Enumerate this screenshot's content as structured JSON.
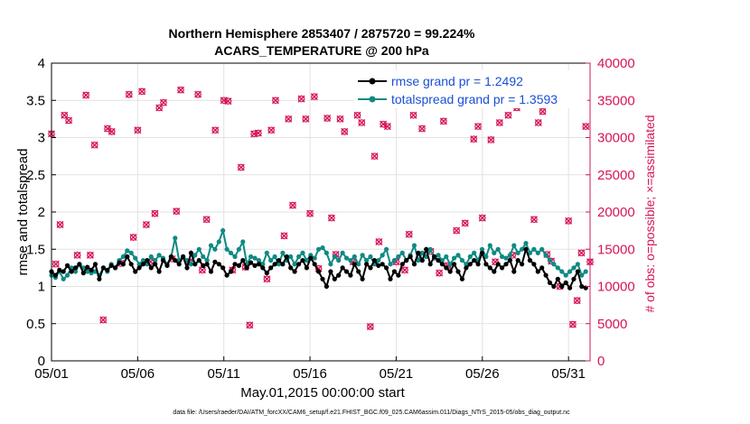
{
  "chart_data": {
    "type": "line",
    "title_line1": "Northern Hemisphere 2853407 / 2875720 = 99.224%",
    "title_line2": "ACARS_TEMPERATURE @ 200 hPa",
    "xlabel": "May.01,2015 00:00:00 start",
    "ylabel_left": "rmse and totalspread",
    "ylabel_right": "# of obs: o=possible; ×=assimilated",
    "footer": "data file: /Users/raeder/DAI/ATM_forcXX/CAM6_setup/f.e21.FHIST_BGC.f09_025.CAM6assim.011/Diags_NTrS_2015-05/obs_diag_output.nc",
    "xlim": [
      0,
      31.25
    ],
    "ylim_left": [
      0,
      4
    ],
    "ylim_right": [
      0,
      40000
    ],
    "x_ticks": [
      {
        "x": 0,
        "label": "05/01"
      },
      {
        "x": 5,
        "label": "05/06"
      },
      {
        "x": 10,
        "label": "05/11"
      },
      {
        "x": 15,
        "label": "05/16"
      },
      {
        "x": 20,
        "label": "05/21"
      },
      {
        "x": 25,
        "label": "05/26"
      },
      {
        "x": 30,
        "label": "05/31"
      }
    ],
    "y_ticks_left": [
      "0",
      "0.5",
      "1",
      "1.5",
      "2",
      "2.5",
      "3",
      "3.5",
      "4"
    ],
    "y_ticks_right": [
      "0",
      "5000",
      "10000",
      "15000",
      "20000",
      "25000",
      "30000",
      "35000",
      "40000"
    ],
    "colors": {
      "rmse": "#000000",
      "spread": "#0f8a84",
      "obs": "#d6155a",
      "legend_text": "#1a4fd6"
    },
    "series": [
      {
        "name": "rmse grand pr = 1.2492",
        "axis": "left",
        "values": [
          1.2,
          1.15,
          1.22,
          1.2,
          1.28,
          1.2,
          1.25,
          1.3,
          1.18,
          1.26,
          1.22,
          1.3,
          1.1,
          1.25,
          1.22,
          1.28,
          1.25,
          1.32,
          1.3,
          1.4,
          1.3,
          1.2,
          1.25,
          1.3,
          1.35,
          1.25,
          1.3,
          1.2,
          1.35,
          1.28,
          1.4,
          1.35,
          1.3,
          1.4,
          1.25,
          1.45,
          1.3,
          1.35,
          1.28,
          1.3,
          1.2,
          1.33,
          1.3,
          1.25,
          1.15,
          1.2,
          1.3,
          1.28,
          1.35,
          1.25,
          1.32,
          1.28,
          1.3,
          1.25,
          1.18,
          1.25,
          1.3,
          1.35,
          1.3,
          1.4,
          1.25,
          1.2,
          1.3,
          1.35,
          1.25,
          1.38,
          1.3,
          1.2,
          1.1,
          1.0,
          1.2,
          1.1,
          1.15,
          1.25,
          1.2,
          1.15,
          1.3,
          1.2,
          1.1,
          1.3,
          1.25,
          1.35,
          1.28,
          1.3,
          1.25,
          1.1,
          1.2,
          1.15,
          1.3,
          1.35,
          1.4,
          1.3,
          1.45,
          1.35,
          1.5,
          1.3,
          1.4,
          1.35,
          1.3,
          1.25,
          1.2,
          1.3,
          1.2,
          1.1,
          1.25,
          1.3,
          1.35,
          1.3,
          1.45,
          1.3,
          1.25,
          1.2,
          1.3,
          1.25,
          1.3,
          1.35,
          1.2,
          1.35,
          1.3,
          1.5,
          1.35,
          1.3,
          1.2,
          1.25,
          1.15,
          1.05,
          1.0,
          1.1,
          1.0,
          1.05,
          0.98,
          1.1,
          1.2,
          1.0,
          0.98
        ]
      },
      {
        "name": "totalspread grand pr = 1.3593",
        "axis": "left",
        "values": [
          1.15,
          1.12,
          1.2,
          1.1,
          1.15,
          1.25,
          1.2,
          1.3,
          1.25,
          1.2,
          1.18,
          1.2,
          1.15,
          1.25,
          1.2,
          1.3,
          1.25,
          1.35,
          1.4,
          1.48,
          1.45,
          1.38,
          1.3,
          1.35,
          1.3,
          1.4,
          1.35,
          1.42,
          1.38,
          1.3,
          1.4,
          1.65,
          1.35,
          1.4,
          1.35,
          1.3,
          1.42,
          1.5,
          1.4,
          1.35,
          1.55,
          1.5,
          1.6,
          1.75,
          1.5,
          1.45,
          1.4,
          1.5,
          1.6,
          1.3,
          1.4,
          1.38,
          1.35,
          1.3,
          1.45,
          1.35,
          1.4,
          1.3,
          1.45,
          1.35,
          1.4,
          1.3,
          1.4,
          1.45,
          1.35,
          1.42,
          1.38,
          1.5,
          1.52,
          1.45,
          1.3,
          1.4,
          1.35,
          1.45,
          1.38,
          1.35,
          1.4,
          1.3,
          1.42,
          1.35,
          1.4,
          1.3,
          1.35,
          1.42,
          1.5,
          1.3,
          1.35,
          1.4,
          1.45,
          1.35,
          1.42,
          1.55,
          1.35,
          1.45,
          1.4,
          1.5,
          1.38,
          1.42,
          1.35,
          1.4,
          1.3,
          1.38,
          1.42,
          1.35,
          1.3,
          1.4,
          1.45,
          1.35,
          1.5,
          1.4,
          1.55,
          1.45,
          1.5,
          1.4,
          1.38,
          1.42,
          1.55,
          1.45,
          1.5,
          1.58,
          1.45,
          1.5,
          1.45,
          1.5,
          1.42,
          1.35,
          1.3,
          1.25,
          1.2,
          1.15,
          1.2,
          1.25,
          1.3,
          1.15,
          1.2
        ]
      },
      {
        "name": "obs possible / assimilated",
        "axis": "right",
        "x": [
          0,
          0.25,
          0.5,
          0.75,
          1,
          1.5,
          2,
          2.25,
          2.5,
          3,
          3.25,
          3.5,
          4,
          4.5,
          4.75,
          5,
          5.25,
          5.5,
          5.75,
          6,
          6.25,
          6.5,
          7,
          7.25,
          7.5,
          8,
          8.5,
          8.75,
          9,
          9.5,
          10,
          10.25,
          10.5,
          11,
          11.25,
          11.5,
          11.75,
          12,
          12.5,
          12.75,
          13,
          13.5,
          13.75,
          14,
          14.5,
          14.75,
          15,
          15.25,
          15.5,
          16,
          16.25,
          16.5,
          16.75,
          17,
          17.5,
          17.75,
          18,
          18.5,
          18.75,
          19,
          19.25,
          19.5,
          20,
          20.5,
          20.75,
          21,
          21.5,
          22,
          22.5,
          22.75,
          23,
          23.5,
          23.75,
          24,
          24.5,
          24.75,
          25,
          25.5,
          25.75,
          26,
          26.5,
          26.75,
          27,
          27.5,
          28,
          28.25,
          28.5,
          28.75,
          29,
          29.5,
          29.75,
          30,
          30.25,
          30.5,
          30.75,
          31,
          31.25
        ],
        "values": [
          30500,
          13000,
          18300,
          33000,
          32300,
          14200,
          35700,
          14200,
          29000,
          5500,
          31200,
          30800,
          13100,
          35800,
          16600,
          31000,
          36200,
          18300,
          13300,
          19800,
          34000,
          34700,
          13700,
          20100,
          36400,
          13300,
          35800,
          12200,
          19000,
          31000,
          35000,
          34900,
          12200,
          26000,
          12600,
          4800,
          30500,
          30600,
          11000,
          31000,
          35000,
          16800,
          32500,
          20900,
          35200,
          32500,
          19800,
          35500,
          12400,
          32600,
          19200,
          14300,
          32500,
          30800,
          13300,
          33000,
          32000,
          4600,
          27500,
          16000,
          31800,
          31500,
          13300,
          12200,
          17000,
          33000,
          31200,
          14700,
          11800,
          32200,
          12800,
          17500,
          35000,
          18500,
          29800,
          31500,
          19200,
          29700,
          13300,
          32000,
          33000,
          14200,
          34000,
          34700,
          19000,
          32000,
          33500,
          14300,
          13400,
          10000,
          34800,
          18800,
          4900,
          8100,
          14500,
          31500,
          13300
        ]
      }
    ],
    "legend": [
      {
        "label": "rmse grand pr = 1.2492",
        "color": "#000000"
      },
      {
        "label": "totalspread grand pr = 1.3593",
        "color": "#0f8a84"
      }
    ],
    "legend_position": "top-right"
  }
}
